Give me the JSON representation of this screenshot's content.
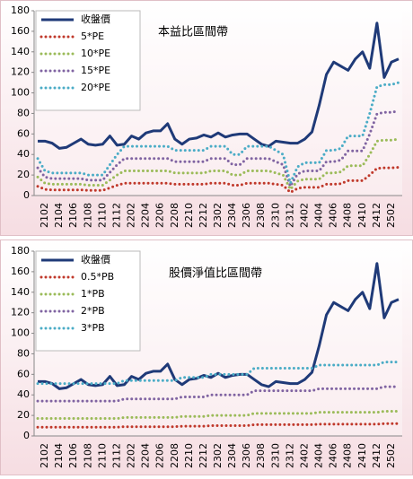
{
  "chart_data": [
    {
      "type": "line",
      "title": "本益比區間帶",
      "legend": "upper left",
      "grid": false,
      "categories": [
        null,
        "2102",
        null,
        "2104",
        null,
        "2106",
        null,
        "2108",
        null,
        "2110",
        null,
        "2112",
        null,
        "2202",
        null,
        "2204",
        null,
        "2206",
        null,
        "2208",
        null,
        "2210",
        null,
        "2212",
        null,
        "2302",
        null,
        "2304",
        null,
        "2306",
        null,
        "2308",
        null,
        "2310",
        null,
        "2312",
        null,
        "2402",
        null,
        "2404",
        null,
        "2406",
        null,
        "2408",
        null,
        "2410",
        null,
        "2412",
        null,
        "2502",
        null
      ],
      "ylim": [
        0,
        180
      ],
      "yticks": [
        0,
        20,
        40,
        60,
        80,
        100,
        120,
        140,
        160,
        180
      ],
      "series": [
        {
          "name": "收盤價",
          "color": "#1f3a78",
          "style": "solid",
          "values": [
            53,
            53,
            51,
            46,
            47,
            51,
            55,
            50,
            49,
            50,
            58,
            49,
            50,
            58,
            55,
            61,
            63,
            63,
            70,
            55,
            50,
            55,
            56,
            59,
            57,
            61,
            57,
            59,
            60,
            60,
            55,
            50,
            48,
            53,
            52,
            51,
            51,
            55,
            62,
            88,
            118,
            130,
            126,
            122,
            133,
            140,
            124,
            168,
            115,
            130,
            133
          ]
        },
        {
          "name": "5*PE",
          "color": "#c0392b",
          "style": "dotted",
          "values": [
            9,
            6,
            5.5,
            5.5,
            5.5,
            5.5,
            5.5,
            5,
            5,
            5,
            7.5,
            10,
            12,
            12,
            12,
            12,
            12,
            12,
            12,
            11,
            11,
            11,
            11,
            11,
            12,
            12,
            12,
            10,
            10,
            12,
            12,
            12,
            12,
            11,
            10,
            3,
            7,
            8,
            8,
            8,
            11,
            11,
            11.5,
            14.5,
            14.5,
            14.5,
            20,
            26.5,
            27,
            27,
            27.5
          ]
        },
        {
          "name": "10*PE",
          "color": "#9bbb59",
          "style": "dotted",
          "values": [
            18,
            12,
            11,
            11,
            11,
            11,
            11,
            10,
            10,
            10,
            15,
            20,
            24,
            24,
            24,
            24,
            24,
            24,
            24,
            22,
            22,
            22,
            22,
            22,
            24,
            24,
            24,
            20,
            20,
            24,
            24,
            24,
            24,
            22,
            20,
            6,
            14,
            16,
            16,
            16,
            22,
            22,
            23,
            29,
            29,
            29,
            40,
            53,
            54,
            54,
            55
          ]
        },
        {
          "name": "15*PE",
          "color": "#8064a2",
          "style": "dotted",
          "values": [
            27,
            18,
            16.5,
            16.5,
            16.5,
            16.5,
            16.5,
            15,
            15,
            15,
            22.5,
            30,
            36,
            36,
            36,
            36,
            36,
            36,
            36,
            33,
            33,
            33,
            33,
            33,
            36,
            36,
            36,
            30,
            30,
            36,
            36,
            36,
            36,
            33,
            30,
            9,
            21,
            24,
            24,
            24,
            33,
            33,
            34.5,
            43.5,
            43.5,
            43.5,
            60,
            79.5,
            81,
            81,
            82.5
          ]
        },
        {
          "name": "20*PE",
          "color": "#4bacc6",
          "style": "dotted",
          "values": [
            36,
            24,
            22,
            22,
            22,
            22,
            22,
            20,
            20,
            20,
            30,
            40,
            48,
            48,
            48,
            48,
            48,
            48,
            48,
            44,
            44,
            44,
            44,
            44,
            48,
            48,
            48,
            40,
            40,
            48,
            48,
            48,
            48,
            44,
            40,
            12,
            28,
            32,
            32,
            32,
            44,
            44,
            46,
            58,
            58,
            58,
            80,
            106,
            108,
            108,
            110
          ]
        }
      ]
    },
    {
      "type": "line",
      "title": "股價淨值比區間帶",
      "legend": "upper left",
      "grid": false,
      "categories": [
        null,
        "2102",
        null,
        "2104",
        null,
        "2106",
        null,
        "2108",
        null,
        "2110",
        null,
        "2112",
        null,
        "2202",
        null,
        "2204",
        null,
        "2206",
        null,
        "2208",
        null,
        "2210",
        null,
        "2212",
        null,
        "2302",
        null,
        "2304",
        null,
        "2306",
        null,
        "2308",
        null,
        "2310",
        null,
        "2312",
        null,
        "2402",
        null,
        "2404",
        null,
        "2406",
        null,
        "2408",
        null,
        "2410",
        null,
        "2412",
        null,
        "2502",
        null
      ],
      "ylim": [
        0,
        180
      ],
      "yticks": [
        0,
        20,
        40,
        60,
        80,
        100,
        120,
        140,
        160,
        180
      ],
      "series": [
        {
          "name": "收盤價",
          "color": "#1f3a78",
          "style": "solid",
          "values": [
            53,
            53,
            51,
            46,
            47,
            51,
            55,
            50,
            49,
            50,
            58,
            49,
            50,
            58,
            55,
            61,
            63,
            63,
            70,
            55,
            50,
            55,
            56,
            59,
            57,
            61,
            57,
            59,
            60,
            60,
            55,
            50,
            48,
            53,
            52,
            51,
            51,
            55,
            62,
            88,
            118,
            130,
            126,
            122,
            133,
            140,
            124,
            168,
            115,
            130,
            133
          ]
        },
        {
          "name": "0.5*PB",
          "color": "#c0392b",
          "style": "dotted",
          "values": [
            8.5,
            8.5,
            8.5,
            8.5,
            8.5,
            8.5,
            8.5,
            8.5,
            8.5,
            8.5,
            8.5,
            8.5,
            9,
            9,
            9,
            9,
            9,
            9,
            9,
            9,
            9.5,
            9.5,
            9.5,
            9.5,
            10,
            10,
            10,
            10,
            10,
            10,
            11,
            11,
            11,
            11,
            11,
            11,
            11,
            11,
            11,
            11.5,
            11.5,
            11.5,
            11.5,
            11.5,
            11.5,
            11.5,
            11.5,
            11.5,
            12,
            12,
            12
          ]
        },
        {
          "name": "1*PB",
          "color": "#9bbb59",
          "style": "dotted",
          "values": [
            17,
            17,
            17,
            17,
            17,
            17,
            17,
            17,
            17,
            17,
            17,
            17,
            18,
            18,
            18,
            18,
            18,
            18,
            18,
            18,
            19,
            19,
            19,
            19,
            20,
            20,
            20,
            20,
            20,
            20,
            22,
            22,
            22,
            22,
            22,
            22,
            22,
            22,
            22,
            23,
            23,
            23,
            23,
            23,
            23,
            23,
            23,
            23,
            24,
            24,
            24
          ]
        },
        {
          "name": "2*PB",
          "color": "#8064a2",
          "style": "dotted",
          "values": [
            34,
            34,
            34,
            34,
            34,
            34,
            34,
            34,
            34,
            34,
            34,
            34,
            36,
            36,
            36,
            36,
            36,
            36,
            36,
            36,
            38,
            38,
            38,
            38,
            40,
            40,
            40,
            40,
            40,
            40,
            44,
            44,
            44,
            44,
            44,
            44,
            44,
            44,
            44,
            46,
            46,
            46,
            46,
            46,
            46,
            46,
            46,
            46,
            48,
            48,
            48
          ]
        },
        {
          "name": "3*PB",
          "color": "#4bacc6",
          "style": "dotted",
          "values": [
            51,
            51,
            51,
            51,
            51,
            51,
            51,
            51,
            51,
            51,
            51,
            51,
            54,
            54,
            54,
            54,
            54,
            54,
            54,
            54,
            57,
            57,
            57,
            57,
            60,
            60,
            60,
            60,
            60,
            60,
            66,
            66,
            66,
            66,
            66,
            66,
            66,
            66,
            66,
            69,
            69,
            69,
            69,
            69,
            69,
            69,
            69,
            69,
            72,
            72,
            72
          ]
        }
      ]
    }
  ]
}
